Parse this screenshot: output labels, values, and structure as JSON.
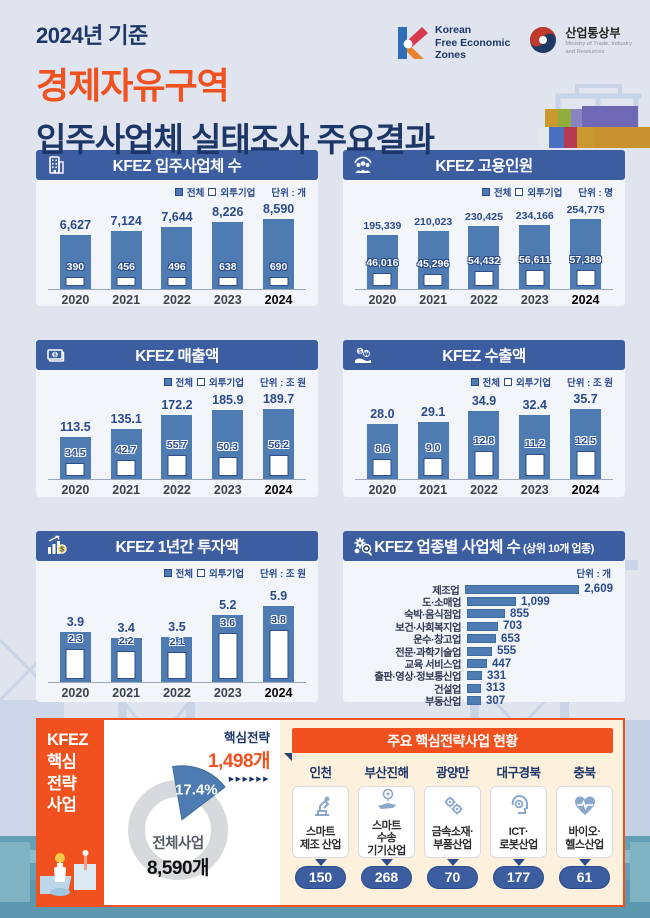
{
  "header": {
    "kicker": "2024년 기준",
    "title_line1": "경제자유구역",
    "title_line2": "입주사업체 실태조사 주요결과",
    "logo_kfez": {
      "line1": "Korean",
      "line2": "Free Economic",
      "line3": "Zones"
    },
    "logo_motie": {
      "name": "산업통상부",
      "sub1": "Ministry of Trade, Industry",
      "sub2": "and Resources"
    }
  },
  "legend": {
    "total": "전체",
    "fdi": "외투기업",
    "unit_prefix": "단위 : "
  },
  "colors": {
    "accent_orange": "#f0511f",
    "header_navy": "#3d5da1",
    "bar_blue": "#4e7cb2",
    "label_navy": "#2b4a8b",
    "title_navy": "#1c3667",
    "cream": "#fdf1de",
    "teal_band": "#63a0b5",
    "donut_gray": "#d7d9dd"
  },
  "chart_data": [
    {
      "type": "bar",
      "title": "KFEZ 입주사업체 수",
      "unit": "개",
      "icon": "building-icon",
      "categories": [
        "2020",
        "2021",
        "2022",
        "2023",
        "2024"
      ],
      "series": [
        {
          "name": "전체",
          "values": [
            6627,
            7124,
            7644,
            8226,
            8590
          ],
          "labels": [
            "6,627",
            "7,124",
            "7,644",
            "8,226",
            "8,590"
          ]
        },
        {
          "name": "외투기업",
          "values": [
            390,
            456,
            496,
            638,
            690
          ],
          "labels": [
            "390",
            "456",
            "496",
            "638",
            "690"
          ]
        }
      ],
      "fdi_label_style": "light",
      "legend_position": "top-right",
      "grid": false
    },
    {
      "type": "bar",
      "title": "KFEZ 고용인원",
      "unit": "명",
      "icon": "people-icon",
      "categories": [
        "2020",
        "2021",
        "2022",
        "2023",
        "2024"
      ],
      "series": [
        {
          "name": "전체",
          "values": [
            195339,
            210023,
            230425,
            234166,
            254775
          ],
          "labels": [
            "195,339",
            "210,023",
            "230,425",
            "234,166",
            "254,775"
          ]
        },
        {
          "name": "외투기업",
          "values": [
            46016,
            45296,
            54432,
            56611,
            57389
          ],
          "labels": [
            "46,016",
            "45,296",
            "54,432",
            "56,611",
            "57,389"
          ]
        }
      ],
      "fdi_label_style": "light",
      "legend_position": "top-right",
      "grid": false
    },
    {
      "type": "bar",
      "title": "KFEZ 매출액",
      "unit": "조 원",
      "icon": "money-icon",
      "categories": [
        "2020",
        "2021",
        "2022",
        "2023",
        "2024"
      ],
      "series": [
        {
          "name": "전체",
          "values": [
            113.5,
            135.1,
            172.2,
            185.9,
            189.7
          ],
          "labels": [
            "113.5",
            "135.1",
            "172.2",
            "185.9",
            "189.7"
          ]
        },
        {
          "name": "외투기업",
          "values": [
            34.5,
            42.7,
            55.7,
            50.3,
            56.2
          ],
          "labels": [
            "34.5",
            "42.7",
            "55.7",
            "50.3",
            "56.2"
          ]
        }
      ],
      "fdi_label_style": "dark",
      "legend_position": "top-right",
      "grid": false
    },
    {
      "type": "bar",
      "title": "KFEZ 수출액",
      "unit": "조 원",
      "icon": "export-icon",
      "categories": [
        "2020",
        "2021",
        "2022",
        "2023",
        "2024"
      ],
      "series": [
        {
          "name": "전체",
          "values": [
            28.0,
            29.1,
            34.9,
            32.4,
            35.7
          ],
          "labels": [
            "28.0",
            "29.1",
            "34.9",
            "32.4",
            "35.7"
          ]
        },
        {
          "name": "외투기업",
          "values": [
            8.6,
            9.0,
            12.8,
            11.2,
            12.5
          ],
          "labels": [
            "8.6",
            "9.0",
            "12.8",
            "11.2",
            "12.5"
          ]
        }
      ],
      "fdi_label_style": "dark",
      "legend_position": "top-right",
      "grid": false
    },
    {
      "type": "bar",
      "title": "KFEZ 1년간 투자액",
      "unit": "조 원",
      "icon": "invest-icon",
      "categories": [
        "2020",
        "2021",
        "2022",
        "2023",
        "2024"
      ],
      "series": [
        {
          "name": "전체",
          "values": [
            3.9,
            3.4,
            3.5,
            5.2,
            5.9
          ],
          "labels": [
            "3.9",
            "3.4",
            "3.5",
            "5.2",
            "5.9"
          ]
        },
        {
          "name": "외투기업",
          "values": [
            2.3,
            2.2,
            2.1,
            3.6,
            3.8
          ],
          "labels": [
            "2.3",
            "2.2",
            "2.1",
            "3.6",
            "3.8"
          ]
        }
      ],
      "fdi_label_style": "dark",
      "legend_position": "top-right",
      "grid": false
    },
    {
      "type": "bar-horizontal",
      "title": "KFEZ 업종별 사업체 수",
      "title_suffix": " (상위 10개 업종)",
      "unit": "개",
      "icon": "industry-search-icon",
      "categories": [
        "제조업",
        "도·소매업",
        "숙박·음식점업",
        "보건·사회복지업",
        "운수·창고업",
        "전문·과학기술업",
        "교육 서비스업",
        "출판·영상·정보통신업",
        "건설업",
        "부동산업"
      ],
      "values": [
        2609,
        1099,
        855,
        703,
        653,
        555,
        447,
        331,
        313,
        307
      ],
      "labels": [
        "2,609",
        "1,099",
        "855",
        "703",
        "653",
        "555",
        "447",
        "331",
        "313",
        "307"
      ],
      "grid": false
    }
  ],
  "strategy": {
    "sidebar_lines": "KFEZ\n핵심\n전략\n사업",
    "donut": {
      "label_top": "핵심전략",
      "label_top_value": "1,498개",
      "arrows": "▶▶▶▶▶▶",
      "pct_value": 17.4,
      "pct_label": "17.4%",
      "center_label": "전체사업",
      "center_value": "8,590개"
    },
    "panel_title": "주요 핵심전략사업 현황",
    "regions": [
      {
        "name": "인천",
        "industry_lines": [
          "스마트",
          "제조 산업"
        ],
        "count": "150",
        "icon": "robot-arm-icon"
      },
      {
        "name": "부산진해",
        "industry_lines": [
          "스마트",
          "수송",
          "기기산업"
        ],
        "count": "268",
        "icon": "transport-icon"
      },
      {
        "name": "광양만",
        "industry_lines": [
          "금속소재·",
          "부품산업"
        ],
        "count": "70",
        "icon": "gears-icon"
      },
      {
        "name": "대구경북",
        "industry_lines": [
          "ICT·",
          "로봇산업"
        ],
        "count": "177",
        "icon": "ict-robot-icon"
      },
      {
        "name": "충북",
        "industry_lines": [
          "바이오·",
          "헬스산업"
        ],
        "count": "61",
        "icon": "bio-health-icon"
      }
    ]
  }
}
